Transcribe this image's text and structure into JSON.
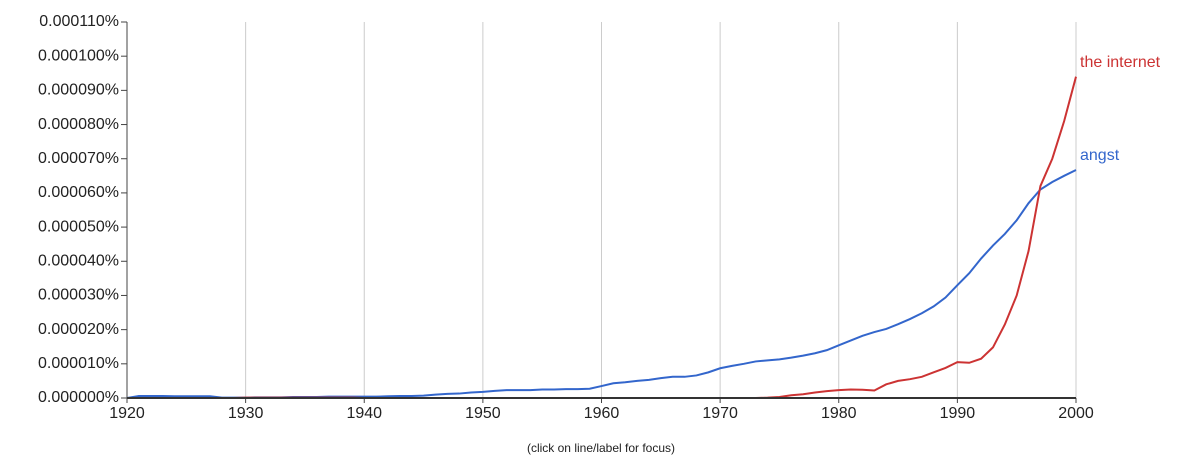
{
  "chart_data": {
    "type": "line",
    "note": "(click on line/label for focus)",
    "x": [
      1920,
      1921,
      1922,
      1923,
      1924,
      1925,
      1926,
      1927,
      1928,
      1929,
      1930,
      1931,
      1932,
      1933,
      1934,
      1935,
      1936,
      1937,
      1938,
      1939,
      1940,
      1941,
      1942,
      1943,
      1944,
      1945,
      1946,
      1947,
      1948,
      1949,
      1950,
      1951,
      1952,
      1953,
      1954,
      1955,
      1956,
      1957,
      1958,
      1959,
      1960,
      1961,
      1962,
      1963,
      1964,
      1965,
      1966,
      1967,
      1968,
      1969,
      1970,
      1971,
      1972,
      1973,
      1974,
      1975,
      1976,
      1977,
      1978,
      1979,
      1980,
      1981,
      1982,
      1983,
      1984,
      1985,
      1986,
      1987,
      1988,
      1989,
      1990,
      1991,
      1992,
      1993,
      1994,
      1995,
      1996,
      1997,
      1998,
      1999,
      2000
    ],
    "series": [
      {
        "name": "angst",
        "color": "#3366cc",
        "values": [
          0,
          6e-07,
          6e-07,
          6e-07,
          5e-07,
          5e-07,
          5e-07,
          5e-07,
          1e-07,
          1e-07,
          1e-07,
          2e-07,
          2e-07,
          2e-07,
          3e-07,
          3e-07,
          3e-07,
          4e-07,
          4e-07,
          4e-07,
          4e-07,
          4e-07,
          5e-07,
          6e-07,
          6e-07,
          7e-07,
          1e-06,
          1.2e-06,
          1.3e-06,
          1.6e-06,
          1.8e-06,
          2.1e-06,
          2.3e-06,
          2.3e-06,
          2.3e-06,
          2.5e-06,
          2.5e-06,
          2.6e-06,
          2.6e-06,
          2.7e-06,
          3.5e-06,
          4.3e-06,
          4.6e-06,
          5e-06,
          5.3e-06,
          5.8e-06,
          6.2e-06,
          6.2e-06,
          6.6e-06,
          7.5e-06,
          8.7e-06,
          9.4e-06,
          1e-05,
          1.07e-05,
          1.1e-05,
          1.13e-05,
          1.18e-05,
          1.24e-05,
          1.31e-05,
          1.4e-05,
          1.54e-05,
          1.68e-05,
          1.82e-05,
          1.93e-05,
          2.02e-05,
          2.16e-05,
          2.31e-05,
          2.48e-05,
          2.68e-05,
          2.94e-05,
          3.3e-05,
          3.65e-05,
          4.08e-05,
          4.46e-05,
          4.8e-05,
          5.2e-05,
          5.7e-05,
          6.1e-05,
          6.32e-05,
          6.5e-05,
          6.67e-05
        ]
      },
      {
        "name": "the internet",
        "color": "#cc3333",
        "values": [
          0,
          0,
          0,
          0,
          0,
          0,
          0,
          0,
          0,
          0,
          1e-07,
          1e-07,
          1e-07,
          1e-07,
          1e-07,
          1e-07,
          1e-07,
          1e-07,
          1e-07,
          1e-07,
          0,
          0,
          0,
          0,
          0,
          0,
          0,
          0,
          0,
          0,
          0,
          0,
          0,
          0,
          0,
          0,
          0,
          0,
          0,
          0,
          0,
          0,
          0,
          0,
          0,
          0,
          0,
          0,
          0,
          0,
          0,
          0,
          0,
          0,
          1e-07,
          3e-07,
          8e-07,
          1.1e-06,
          1.6e-06,
          2e-06,
          2.3e-06,
          2.5e-06,
          2.4e-06,
          2.2e-06,
          4e-06,
          5e-06,
          5.5e-06,
          6.2e-06,
          7.5e-06,
          8.8e-06,
          1.05e-05,
          1.03e-05,
          1.15e-05,
          1.48e-05,
          2.15e-05,
          3e-05,
          4.3e-05,
          6.2e-05,
          7e-05,
          8.1e-05,
          9.4e-05
        ]
      }
    ],
    "xlim": [
      1920,
      2000
    ],
    "xticks": [
      1920,
      1930,
      1940,
      1950,
      1960,
      1970,
      1980,
      1990,
      2000
    ],
    "ylim": [
      0,
      0.00011
    ],
    "yticks": [
      {
        "value": 0,
        "label": "0.000000%"
      },
      {
        "value": 1e-05,
        "label": "0.000010%"
      },
      {
        "value": 2e-05,
        "label": "0.000020%"
      },
      {
        "value": 3e-05,
        "label": "0.000030%"
      },
      {
        "value": 4e-05,
        "label": "0.000040%"
      },
      {
        "value": 5e-05,
        "label": "0.000050%"
      },
      {
        "value": 6e-05,
        "label": "0.000060%"
      },
      {
        "value": 7e-05,
        "label": "0.000070%"
      },
      {
        "value": 8e-05,
        "label": "0.000080%"
      },
      {
        "value": 9e-05,
        "label": "0.000090%"
      },
      {
        "value": 0.0001,
        "label": "0.000100%"
      },
      {
        "value": 0.00011,
        "label": "0.000110%"
      }
    ],
    "grid": true
  }
}
